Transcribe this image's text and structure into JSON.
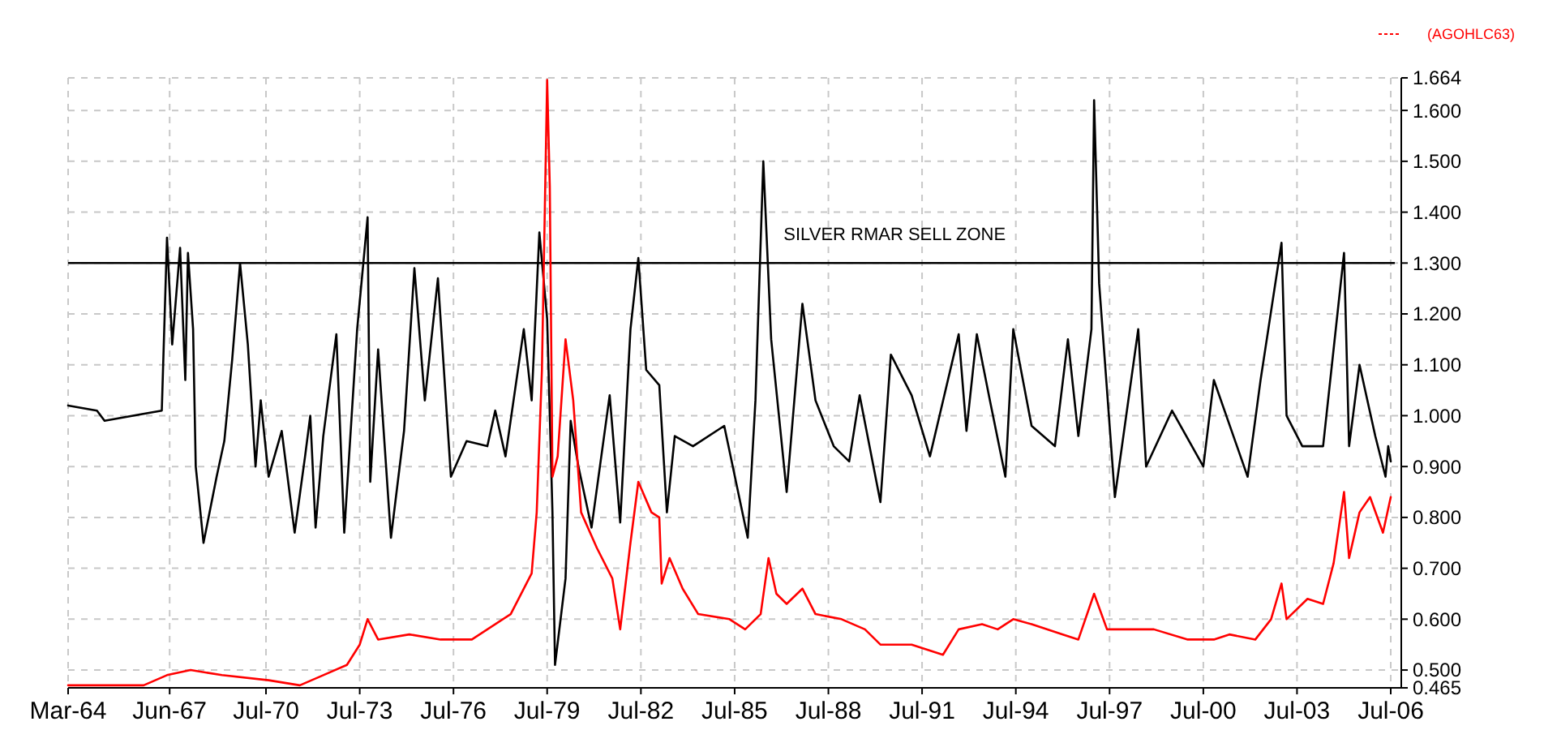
{
  "chart_data": {
    "type": "line",
    "xlim": [
      "1964-03",
      "2006-11"
    ],
    "xticks": [
      {
        "value": "1964-03",
        "label": "Mar-64"
      },
      {
        "value": "1967-06",
        "label": "Jun-67"
      },
      {
        "value": "1970-07",
        "label": "Jul-70"
      },
      {
        "value": "1973-07",
        "label": "Jul-73"
      },
      {
        "value": "1976-07",
        "label": "Jul-76"
      },
      {
        "value": "1979-07",
        "label": "Jul-79"
      },
      {
        "value": "1982-07",
        "label": "Jul-82"
      },
      {
        "value": "1985-07",
        "label": "Jul-85"
      },
      {
        "value": "1988-07",
        "label": "Jul-88"
      },
      {
        "value": "1991-07",
        "label": "Jul-91"
      },
      {
        "value": "1994-07",
        "label": "Jul-94"
      },
      {
        "value": "1997-07",
        "label": "Jul-97"
      },
      {
        "value": "2000-07",
        "label": "Jul-00"
      },
      {
        "value": "2003-07",
        "label": "Jul-03"
      },
      {
        "value": "2006-07",
        "label": "Jul-06"
      }
    ],
    "ylim": [
      0.465,
      1.664
    ],
    "yticks": [
      0.465,
      {
        "value": 0.5,
        "label": "0.500"
      },
      {
        "value": 0.6,
        "label": "0.600"
      },
      {
        "value": 0.7,
        "label": "0.700"
      },
      {
        "value": 0.8,
        "label": "0.800"
      },
      {
        "value": 0.9,
        "label": "0.900"
      },
      {
        "value": 1.0,
        "label": "1.000"
      },
      {
        "value": 1.1,
        "label": "1.100"
      },
      {
        "value": 1.2,
        "label": "1.200"
      },
      {
        "value": 1.3,
        "label": "1.300"
      },
      {
        "value": 1.4,
        "label": "1.400"
      },
      {
        "value": 1.5,
        "label": "1.500"
      },
      {
        "value": 1.6,
        "label": "1.600"
      },
      1.664
    ],
    "grid": true,
    "legend": "top right",
    "ref_lines": [
      {
        "axis": "y",
        "value": 1.3,
        "label": "SILVER RMAR SELL ZONE",
        "color": "#000000"
      }
    ],
    "series": [
      {
        "color": "#000000",
        "x": [
          "1964-03",
          "1965-02",
          "1965-05",
          "1967-03",
          "1967-05",
          "1967-07",
          "1967-10",
          "1967-12",
          "1968-01",
          "1968-03",
          "1968-04",
          "1968-07",
          "1968-12",
          "1969-03",
          "1969-06",
          "1969-09",
          "1969-12",
          "1970-03",
          "1970-05",
          "1970-08",
          "1971-01",
          "1971-06",
          "1971-10",
          "1971-12",
          "1972-02",
          "1972-05",
          "1972-10",
          "1973-01",
          "1973-06",
          "1973-10",
          "1973-11",
          "1974-02",
          "1974-07",
          "1974-12",
          "1975-04",
          "1975-08",
          "1976-01",
          "1976-06",
          "1976-12",
          "1977-08",
          "1977-11",
          "1978-03",
          "1978-10",
          "1979-01",
          "1979-04",
          "1979-07",
          "1979-09",
          "1979-10",
          "1980-02",
          "1980-04",
          "1980-07",
          "1980-12",
          "1981-07",
          "1981-11",
          "1982-03",
          "1982-06",
          "1982-09",
          "1983-02",
          "1983-05",
          "1983-08",
          "1984-03",
          "1985-03",
          "1985-12",
          "1986-03",
          "1986-06",
          "1986-09",
          "1987-03",
          "1987-09",
          "1988-02",
          "1988-09",
          "1989-03",
          "1989-07",
          "1990-03",
          "1990-07",
          "1991-03",
          "1991-10",
          "1992-09",
          "1992-12",
          "1993-04",
          "1993-09",
          "1994-03",
          "1994-06",
          "1995-01",
          "1995-10",
          "1996-03",
          "1996-07",
          "1996-12",
          "1997-01",
          "1997-03",
          "1997-09",
          "1998-06",
          "1998-09",
          "1999-07",
          "2000-07",
          "2000-11",
          "2001-12",
          "2002-05",
          "2003-01",
          "2003-03",
          "2003-09",
          "2004-05",
          "2005-01",
          "2005-03",
          "2005-07",
          "2006-01",
          "2006-05",
          "2006-06",
          "2006-07"
        ],
        "values": [
          1.02,
          1.01,
          0.99,
          1.01,
          1.35,
          1.14,
          1.33,
          1.07,
          1.32,
          1.17,
          0.9,
          0.75,
          0.88,
          0.95,
          1.11,
          1.3,
          1.14,
          0.9,
          1.03,
          0.88,
          0.97,
          0.77,
          0.92,
          1.0,
          0.78,
          0.96,
          1.16,
          0.77,
          1.17,
          1.39,
          0.87,
          1.13,
          0.76,
          0.97,
          1.29,
          1.03,
          1.27,
          0.88,
          0.95,
          0.94,
          1.01,
          0.92,
          1.17,
          1.03,
          1.36,
          1.19,
          0.81,
          0.51,
          0.68,
          0.99,
          0.9,
          0.78,
          1.04,
          0.79,
          1.17,
          1.31,
          1.09,
          1.06,
          0.81,
          0.96,
          0.94,
          0.98,
          0.76,
          1.03,
          1.5,
          1.15,
          0.85,
          1.22,
          1.03,
          0.94,
          0.91,
          1.04,
          0.83,
          1.12,
          1.04,
          0.92,
          1.16,
          0.97,
          1.16,
          1.03,
          0.88,
          1.17,
          0.98,
          0.94,
          1.15,
          0.96,
          1.17,
          1.62,
          1.26,
          0.84,
          1.17,
          0.9,
          1.01,
          0.9,
          1.07,
          0.88,
          1.07,
          1.34,
          1.0,
          0.94,
          0.94,
          1.32,
          0.94,
          1.1,
          0.96,
          0.88,
          0.94,
          0.91
        ]
      },
      {
        "name": "(AGOHLC63)",
        "color": "#ff0000",
        "x": [
          "1964-03",
          "1966-08",
          "1967-05",
          "1968-02",
          "1969-02",
          "1970-08",
          "1971-08",
          "1972-05",
          "1973-02",
          "1973-07",
          "1973-10",
          "1974-02",
          "1975-02",
          "1976-02",
          "1977-02",
          "1978-05",
          "1979-01",
          "1979-03",
          "1979-05",
          "1979-07",
          "1979-08",
          "1979-09",
          "1979-11",
          "1980-02",
          "1980-05",
          "1980-08",
          "1981-02",
          "1981-08",
          "1981-11",
          "1982-03",
          "1982-06",
          "1982-11",
          "1983-02",
          "1983-03",
          "1983-06",
          "1983-11",
          "1984-05",
          "1985-05",
          "1985-11",
          "1986-05",
          "1986-08",
          "1986-11",
          "1987-03",
          "1987-09",
          "1988-02",
          "1988-12",
          "1989-09",
          "1990-03",
          "1991-03",
          "1992-03",
          "1992-09",
          "1993-06",
          "1993-12",
          "1994-06",
          "1995-01",
          "1996-01",
          "1996-07",
          "1997-01",
          "1997-06",
          "1998-03",
          "1998-12",
          "2000-01",
          "2000-11",
          "2001-05",
          "2002-03",
          "2002-09",
          "2003-01",
          "2003-03",
          "2003-11",
          "2004-05",
          "2004-09",
          "2005-01",
          "2005-03",
          "2005-07",
          "2005-11",
          "2006-04",
          "2006-07"
        ],
        "values": [
          0.47,
          0.47,
          0.49,
          0.5,
          0.49,
          0.48,
          0.47,
          0.49,
          0.51,
          0.55,
          0.6,
          0.56,
          0.57,
          0.56,
          0.56,
          0.61,
          0.69,
          0.81,
          1.09,
          1.66,
          1.45,
          0.88,
          0.92,
          1.15,
          1.03,
          0.81,
          0.74,
          0.68,
          0.58,
          0.75,
          0.87,
          0.81,
          0.8,
          0.67,
          0.72,
          0.66,
          0.61,
          0.6,
          0.58,
          0.61,
          0.72,
          0.65,
          0.63,
          0.66,
          0.61,
          0.6,
          0.58,
          0.55,
          0.55,
          0.53,
          0.58,
          0.59,
          0.58,
          0.6,
          0.59,
          0.57,
          0.56,
          0.65,
          0.58,
          0.58,
          0.58,
          0.56,
          0.56,
          0.57,
          0.56,
          0.6,
          0.67,
          0.6,
          0.64,
          0.63,
          0.71,
          0.85,
          0.72,
          0.81,
          0.84,
          0.77,
          0.84
        ]
      }
    ]
  }
}
